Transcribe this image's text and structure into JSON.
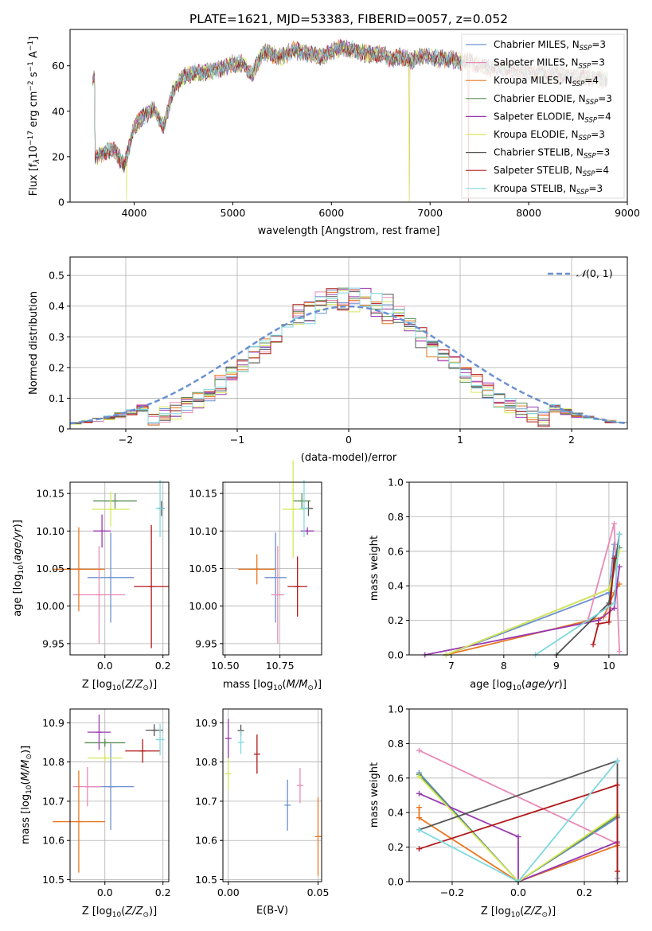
{
  "page": {
    "title": "PLATE=1621, MJD=53383, FIBERID=0057, z=0.052"
  },
  "colors": {
    "Chabrier MILES": "#6a90d0",
    "Salpeter MILES": "#e88ab5",
    "Kroupa MILES": "#e8761f",
    "Chabrier ELODIE": "#5a8e55",
    "Salpeter ELODIE": "#9838b0",
    "Kroupa ELODIE": "#d7e85a",
    "Chabrier STELIB": "#555555",
    "Salpeter STELIB": "#b01818",
    "Kroupa STELIB": "#7fd8e0"
  },
  "chart_data": [
    {
      "id": "spectrum",
      "type": "line",
      "title": "PLATE=1621, MJD=53383, FIBERID=0057, z=0.052",
      "xlabel": "wavelength [Angstrom, rest frame]",
      "ylabel": "Flux [f_λ 10^-17 erg cm^-2 s^-1 A^-1]",
      "xlim": [
        3350,
        9000
      ],
      "ylim": [
        0,
        76
      ],
      "xticks": [
        4000,
        5000,
        6000,
        7000,
        8000,
        9000
      ],
      "yticks": [
        0,
        20,
        40,
        60
      ],
      "legend_position": "right",
      "legend": [
        "Chabrier MILES, N_SSP=3",
        "Salpeter MILES, N_SSP=3",
        "Kroupa MILES, N_SSP=4",
        "Chabrier ELODIE, N_SSP=3",
        "Salpeter ELODIE, N_SSP=4",
        "Kroupa ELODIE, N_SSP=3",
        "Chabrier STELIB, N_SSP=3",
        "Salpeter STELIB, N_SSP=4",
        "Kroupa STELIB, N_SSP=3"
      ],
      "x": [
        3600,
        3700,
        3800,
        3900,
        4000,
        4100,
        4200,
        4300,
        4400,
        4500,
        4600,
        4700,
        4800,
        4900,
        5000,
        5100,
        5200,
        5300,
        5400,
        5500,
        5600,
        5700,
        5800,
        5900,
        6000,
        6100,
        6200,
        6300,
        6400,
        6500,
        6600,
        6700,
        6800,
        6900,
        7000,
        7100,
        7200,
        7300,
        7400,
        7500,
        7600,
        7700,
        7800,
        7900,
        8000,
        8100,
        8200,
        8300,
        8400,
        8500,
        8600,
        8700,
        8800
      ],
      "y": [
        19,
        22,
        23,
        16,
        33,
        38,
        41,
        33,
        50,
        55,
        57,
        57,
        58,
        59,
        61,
        61,
        56,
        66,
        65,
        64,
        67,
        66,
        65,
        64,
        66,
        68,
        67,
        66,
        65,
        65,
        63,
        64,
        62,
        64,
        64,
        63,
        63,
        62,
        62,
        60,
        59,
        59,
        58,
        58,
        57,
        57,
        57,
        56,
        56,
        55,
        55,
        54,
        54
      ],
      "dropouts": [
        {
          "series": "Kroupa ELODIE",
          "x": 3920,
          "y": 0
        },
        {
          "series": "Kroupa MILES",
          "x": 6790,
          "y": 0
        },
        {
          "series": "Kroupa ELODIE",
          "x": 6790,
          "y": 0
        },
        {
          "series": "Salpeter STELIB",
          "x": 7390,
          "y": 0
        }
      ]
    },
    {
      "id": "residuals",
      "type": "line",
      "xlabel": "(data-model)/error",
      "ylabel": "Normed distribution",
      "xlim": [
        -2.5,
        2.5
      ],
      "ylim": [
        0,
        0.56
      ],
      "xticks": [
        -2,
        -1,
        0,
        1,
        2
      ],
      "yticks": [
        0.0,
        0.1,
        0.2,
        0.3,
        0.4,
        0.5
      ],
      "legend": [
        "N(0,1)"
      ],
      "normal_curve": {
        "mean": 0,
        "sigma": 1
      }
    },
    {
      "id": "age_vs_Z",
      "type": "scatter",
      "xlabel": "Z [log10(Z/Z_sun)]",
      "ylabel": "age [log10(age/yr)]",
      "xlim": [
        -0.12,
        0.22
      ],
      "ylim": [
        9.935,
        10.165
      ],
      "xticks": [
        0.0,
        0.2
      ],
      "yticks": [
        9.95,
        10.0,
        10.05,
        10.1,
        10.15
      ],
      "points": [
        {
          "series": "Chabrier MILES",
          "x": 0.02,
          "y": 10.038,
          "xerr": 0.08,
          "yerr": 0.06
        },
        {
          "series": "Salpeter MILES",
          "x": -0.02,
          "y": 10.015,
          "xerr": 0.09,
          "yerr": 0.065
        },
        {
          "series": "Kroupa MILES",
          "x": -0.09,
          "y": 10.049,
          "xerr": 0.09,
          "yerr": 0.056
        },
        {
          "series": "Chabrier ELODIE",
          "x": 0.035,
          "y": 10.14,
          "xerr": 0.075,
          "yerr": 0.01
        },
        {
          "series": "Salpeter ELODIE",
          "x": -0.01,
          "y": 10.1,
          "xerr": 0.03,
          "yerr": 0.022
        },
        {
          "series": "Kroupa ELODIE",
          "x": 0.02,
          "y": 10.129,
          "xerr": 0.065,
          "yerr": 0.023
        },
        {
          "series": "Chabrier STELIB",
          "x": 0.195,
          "y": 10.13,
          "xerr": 0.01,
          "yerr": 0.01
        },
        {
          "series": "Salpeter STELIB",
          "x": 0.16,
          "y": 10.026,
          "xerr": 0.06,
          "yerr": 0.082
        },
        {
          "series": "Kroupa STELIB",
          "x": 0.19,
          "y": 10.13,
          "xerr": 0.015,
          "yerr": 0.038
        }
      ]
    },
    {
      "id": "age_vs_mass",
      "type": "scatter",
      "xlabel": "mass [log10(M/M_sun)]",
      "xlim": [
        10.49,
        10.94
      ],
      "ylim": [
        9.935,
        10.165
      ],
      "xticks": [
        10.5,
        10.75
      ],
      "yticks": [
        9.95,
        10.0,
        10.05,
        10.1,
        10.15
      ],
      "points": [
        {
          "series": "Chabrier MILES",
          "x": 10.73,
          "y": 10.038,
          "xerr": 0.05,
          "yerr": 0.06
        },
        {
          "series": "Salpeter MILES",
          "x": 10.74,
          "y": 10.015,
          "xerr": 0.03,
          "yerr": 0.065
        },
        {
          "series": "Kroupa MILES",
          "x": 10.645,
          "y": 10.049,
          "xerr": 0.085,
          "yerr": 0.02
        },
        {
          "series": "Chabrier ELODIE",
          "x": 10.85,
          "y": 10.14,
          "xerr": 0.04,
          "yerr": 0.01
        },
        {
          "series": "Salpeter ELODIE",
          "x": 10.875,
          "y": 10.1,
          "xerr": 0.03,
          "yerr": 0.005
        },
        {
          "series": "Kroupa ELODIE",
          "x": 10.81,
          "y": 10.129,
          "xerr": 0.05,
          "yerr": 0.065
        },
        {
          "series": "Chabrier STELIB",
          "x": 10.88,
          "y": 10.13,
          "xerr": 0.02,
          "yerr": 0.01
        },
        {
          "series": "Salpeter STELIB",
          "x": 10.83,
          "y": 10.026,
          "xerr": 0.045,
          "yerr": 0.04
        },
        {
          "series": "Kroupa STELIB",
          "x": 10.86,
          "y": 10.13,
          "xerr": 0.02,
          "yerr": 0.038
        }
      ]
    },
    {
      "id": "weight_vs_age",
      "type": "line",
      "xlabel": "age [log10(age/yr)]",
      "ylabel": "mass weight",
      "xlim": [
        6.2,
        10.35
      ],
      "ylim": [
        0,
        1.0
      ],
      "xticks": [
        7,
        8,
        9,
        10
      ],
      "yticks": [
        0.0,
        0.2,
        0.4,
        0.6,
        0.8,
        1.0
      ],
      "series": [
        {
          "name": "Chabrier MILES",
          "x": [
            6.9,
            10.0,
            10.1
          ],
          "y": [
            0.0,
            0.36,
            0.64
          ]
        },
        {
          "name": "Salpeter MILES",
          "x": [
            9.6,
            10.1,
            10.2
          ],
          "y": [
            0.2,
            0.76,
            0.02
          ]
        },
        {
          "name": "Kroupa MILES",
          "x": [
            6.9,
            9.9,
            10.1,
            10.2
          ],
          "y": [
            0.0,
            0.22,
            0.36,
            0.41
          ]
        },
        {
          "name": "Chabrier ELODIE",
          "x": [
            6.9,
            10.0,
            10.2
          ],
          "y": [
            0.0,
            0.38,
            0.62
          ]
        },
        {
          "name": "Salpeter ELODIE",
          "x": [
            6.5,
            9.8,
            10.1,
            10.2
          ],
          "y": [
            0.0,
            0.2,
            0.27,
            0.51
          ]
        },
        {
          "name": "Kroupa ELODIE",
          "x": [
            6.9,
            10.0,
            10.2
          ],
          "y": [
            0.0,
            0.38,
            0.6
          ]
        },
        {
          "name": "Chabrier STELIB",
          "x": [
            9.0,
            10.0,
            10.2
          ],
          "y": [
            0.0,
            0.3,
            0.7
          ]
        },
        {
          "name": "Salpeter STELIB",
          "x": [
            9.7,
            9.8,
            10.0,
            10.1
          ],
          "y": [
            0.06,
            0.18,
            0.19,
            0.56
          ]
        },
        {
          "name": "Kroupa STELIB",
          "x": [
            8.6,
            10.1,
            10.2
          ],
          "y": [
            0.0,
            0.3,
            0.7
          ]
        }
      ]
    },
    {
      "id": "mass_vs_Z",
      "type": "scatter",
      "xlabel": "Z [log10(Z/Z_sun)]",
      "ylabel": "mass [log10(M/M_sun)]",
      "xlim": [
        -0.12,
        0.22
      ],
      "ylim": [
        10.495,
        10.935
      ],
      "xticks": [
        0.0,
        0.2
      ],
      "yticks": [
        10.5,
        10.6,
        10.7,
        10.8,
        10.9
      ],
      "points": [
        {
          "series": "Chabrier MILES",
          "x": 0.02,
          "y": 10.737,
          "xerr": 0.08,
          "yerr": 0.11
        },
        {
          "series": "Salpeter MILES",
          "x": -0.06,
          "y": 10.737,
          "xerr": 0.05,
          "yerr": 0.05
        },
        {
          "series": "Kroupa MILES",
          "x": -0.09,
          "y": 10.648,
          "xerr": 0.09,
          "yerr": 0.13
        },
        {
          "series": "Chabrier ELODIE",
          "x": 0.0,
          "y": 10.849,
          "xerr": 0.07,
          "yerr": 0.01
        },
        {
          "series": "Salpeter ELODIE",
          "x": -0.02,
          "y": 10.876,
          "xerr": 0.04,
          "yerr": 0.045
        },
        {
          "series": "Kroupa ELODIE",
          "x": 0.0,
          "y": 10.81,
          "xerr": 0.06,
          "yerr": 0.01
        },
        {
          "series": "Chabrier STELIB",
          "x": 0.17,
          "y": 10.881,
          "xerr": 0.03,
          "yerr": 0.015
        },
        {
          "series": "Salpeter STELIB",
          "x": 0.13,
          "y": 10.828,
          "xerr": 0.06,
          "yerr": 0.03
        },
        {
          "series": "Kroupa STELIB",
          "x": 0.19,
          "y": 10.857,
          "xerr": 0.015,
          "yerr": 0.04
        }
      ]
    },
    {
      "id": "mass_vs_ebv",
      "type": "scatter",
      "xlabel": "E(B-V)",
      "xlim": [
        -0.003,
        0.052
      ],
      "ylim": [
        10.495,
        10.935
      ],
      "xticks": [
        0.0,
        0.05
      ],
      "yticks": [
        10.5,
        10.6,
        10.7,
        10.8,
        10.9
      ],
      "points": [
        {
          "series": "Chabrier MILES",
          "x": 0.033,
          "y": 10.69,
          "yerr": 0.065
        },
        {
          "series": "Salpeter MILES",
          "x": 0.04,
          "y": 10.74,
          "yerr": 0.045
        },
        {
          "series": "Kroupa MILES",
          "x": 0.05,
          "y": 10.61,
          "yerr": 0.1
        },
        {
          "series": "Salpeter ELODIE",
          "x": 0.0,
          "y": 10.86,
          "yerr": 0.05
        },
        {
          "series": "Kroupa ELODIE",
          "x": 0.0,
          "y": 10.77,
          "yerr": 0.04
        },
        {
          "series": "Chabrier STELIB",
          "x": 0.007,
          "y": 10.88,
          "yerr": 0.015
        },
        {
          "series": "Salpeter STELIB",
          "x": 0.016,
          "y": 10.82,
          "yerr": 0.05
        },
        {
          "series": "Kroupa STELIB",
          "x": 0.007,
          "y": 10.85,
          "yerr": 0.03
        }
      ]
    },
    {
      "id": "weight_vs_Z",
      "type": "line",
      "xlabel": "Z [log10(Z/Z_sun)]",
      "ylabel": "mass weight",
      "xlim": [
        -0.33,
        0.33
      ],
      "ylim": [
        0,
        1.0
      ],
      "xticks": [
        -0.2,
        0.0,
        0.2
      ],
      "yticks": [
        0.0,
        0.2,
        0.4,
        0.6,
        0.8,
        1.0
      ],
      "series": [
        {
          "name": "Chabrier MILES",
          "x": [
            -0.3,
            0.0,
            0.3
          ],
          "y": [
            0.63,
            0.0,
            0.37
          ]
        },
        {
          "name": "Salpeter MILES",
          "x": [
            -0.3,
            0.3,
            0.3
          ],
          "y": [
            0.76,
            0.22,
            0.02
          ]
        },
        {
          "name": "Kroupa MILES",
          "x": [
            -0.3,
            -0.3,
            0.0,
            0.3
          ],
          "y": [
            0.43,
            0.37,
            0.0,
            0.21
          ]
        },
        {
          "name": "Chabrier ELODIE",
          "x": [
            -0.3,
            0.0,
            0.3
          ],
          "y": [
            0.62,
            0.0,
            0.38
          ]
        },
        {
          "name": "Salpeter ELODIE",
          "x": [
            -0.3,
            0.0,
            0.0,
            0.3
          ],
          "y": [
            0.51,
            0.26,
            0.0,
            0.23
          ]
        },
        {
          "name": "Kroupa ELODIE",
          "x": [
            -0.3,
            0.0,
            0.3
          ],
          "y": [
            0.61,
            0.0,
            0.39
          ]
        },
        {
          "name": "Chabrier STELIB",
          "x": [
            -0.3,
            0.3,
            0.3
          ],
          "y": [
            0.3,
            0.7,
            0.0
          ]
        },
        {
          "name": "Salpeter STELIB",
          "x": [
            -0.3,
            0.3,
            0.3
          ],
          "y": [
            0.19,
            0.56,
            0.06
          ]
        },
        {
          "name": "Kroupa STELIB",
          "x": [
            -0.3,
            0.0,
            0.3
          ],
          "y": [
            0.3,
            0.0,
            0.7
          ]
        }
      ]
    }
  ]
}
